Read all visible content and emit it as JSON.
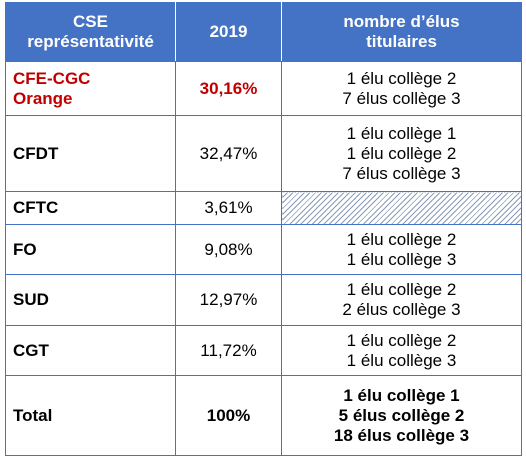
{
  "header": {
    "col1": [
      "CSE",
      "représentativité"
    ],
    "col2": "2019",
    "col3": [
      "nombre d’élus",
      "titulaires"
    ]
  },
  "rows": [
    {
      "name": [
        "CFE-CGC",
        "Orange"
      ],
      "pct": "30,16%",
      "elus": [
        "1 élu collège 2",
        "7 élus collège 3"
      ]
    },
    {
      "name": [
        "CFDT"
      ],
      "pct": "32,47%",
      "elus": [
        "1 élu collège 1",
        "1 élu collège 2",
        "7 élus collège 3"
      ]
    },
    {
      "name": [
        "CFTC"
      ],
      "pct": "3,61%",
      "elus": []
    },
    {
      "name": [
        "FO"
      ],
      "pct": "9,08%",
      "elus": [
        "1 élu collège 2",
        "1 élu collège 3"
      ]
    },
    {
      "name": [
        "SUD"
      ],
      "pct": "12,97%",
      "elus": [
        "1 élu collège 2",
        "2 élus collège 3"
      ]
    },
    {
      "name": [
        "CGT"
      ],
      "pct": "11,72%",
      "elus": [
        "1 élu collège 2",
        "1 élu collège 3"
      ]
    }
  ],
  "total": {
    "name": "Total",
    "pct": "100%",
    "elus": [
      "1 élu collège 1",
      "5 élus collège 2",
      "18 élus collège 3"
    ]
  },
  "colors": {
    "header_bg": "#4472c4",
    "highlight_text": "#c00000",
    "border": "#4472c4"
  }
}
